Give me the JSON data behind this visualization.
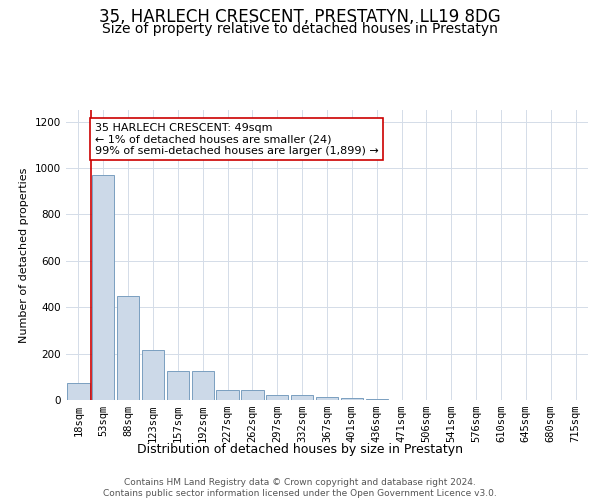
{
  "title": "35, HARLECH CRESCENT, PRESTATYN, LL19 8DG",
  "subtitle": "Size of property relative to detached houses in Prestatyn",
  "xlabel": "Distribution of detached houses by size in Prestatyn",
  "ylabel": "Number of detached properties",
  "bar_labels": [
    "18sqm",
    "53sqm",
    "88sqm",
    "123sqm",
    "157sqm",
    "192sqm",
    "227sqm",
    "262sqm",
    "297sqm",
    "332sqm",
    "367sqm",
    "401sqm",
    "436sqm",
    "471sqm",
    "506sqm",
    "541sqm",
    "576sqm",
    "610sqm",
    "645sqm",
    "680sqm",
    "715sqm"
  ],
  "bar_values": [
    75,
    970,
    450,
    215,
    125,
    125,
    45,
    45,
    20,
    20,
    15,
    10,
    5,
    0,
    0,
    0,
    0,
    0,
    0,
    0,
    0
  ],
  "bar_color": "#ccd9e8",
  "bar_edge_color": "#7a9fc0",
  "annotation_line_color": "#cc0000",
  "annotation_box_text": "35 HARLECH CRESCENT: 49sqm\n← 1% of detached houses are smaller (24)\n99% of semi-detached houses are larger (1,899) →",
  "annotation_box_color": "#ffffff",
  "annotation_box_edge_color": "#cc0000",
  "ylim": [
    0,
    1250
  ],
  "yticks": [
    0,
    200,
    400,
    600,
    800,
    1000,
    1200
  ],
  "grid_color": "#d4dce8",
  "background_color": "#ffffff",
  "footer_text": "Contains HM Land Registry data © Crown copyright and database right 2024.\nContains public sector information licensed under the Open Government Licence v3.0.",
  "title_fontsize": 12,
  "subtitle_fontsize": 10,
  "xlabel_fontsize": 9,
  "ylabel_fontsize": 8,
  "tick_fontsize": 7.5,
  "annotation_fontsize": 8,
  "footer_fontsize": 6.5
}
